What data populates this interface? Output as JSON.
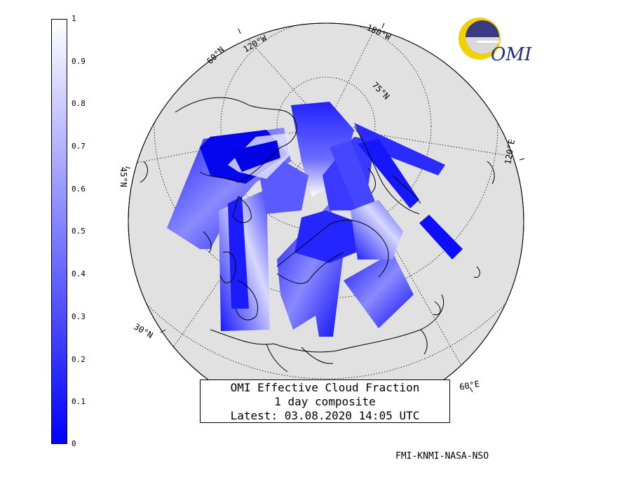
{
  "colorbar": {
    "ticks": [
      "1",
      "0.9",
      "0.8",
      "0.7",
      "0.6",
      "0.5",
      "0.4",
      "0.3",
      "0.2",
      "0.1",
      "0"
    ],
    "color_low": "#0000ff",
    "color_high": "#ffffff"
  },
  "legend": {
    "line1": "OMI Effective Cloud Fraction",
    "line2": "1 day composite",
    "line3": "Latest: 03.08.2020 14:05 UTC"
  },
  "credits": "FMI-KNMI-NASA-NSO",
  "logo": {
    "text": "OMI"
  },
  "map": {
    "projection": "polar stereographic",
    "background_color": "#e1e1e1",
    "latitude_labels": [
      "75°N",
      "60°N",
      "45°N",
      "30°N"
    ],
    "longitude_labels": [
      "180°W",
      "120°W",
      "120°E",
      "60°E"
    ]
  }
}
